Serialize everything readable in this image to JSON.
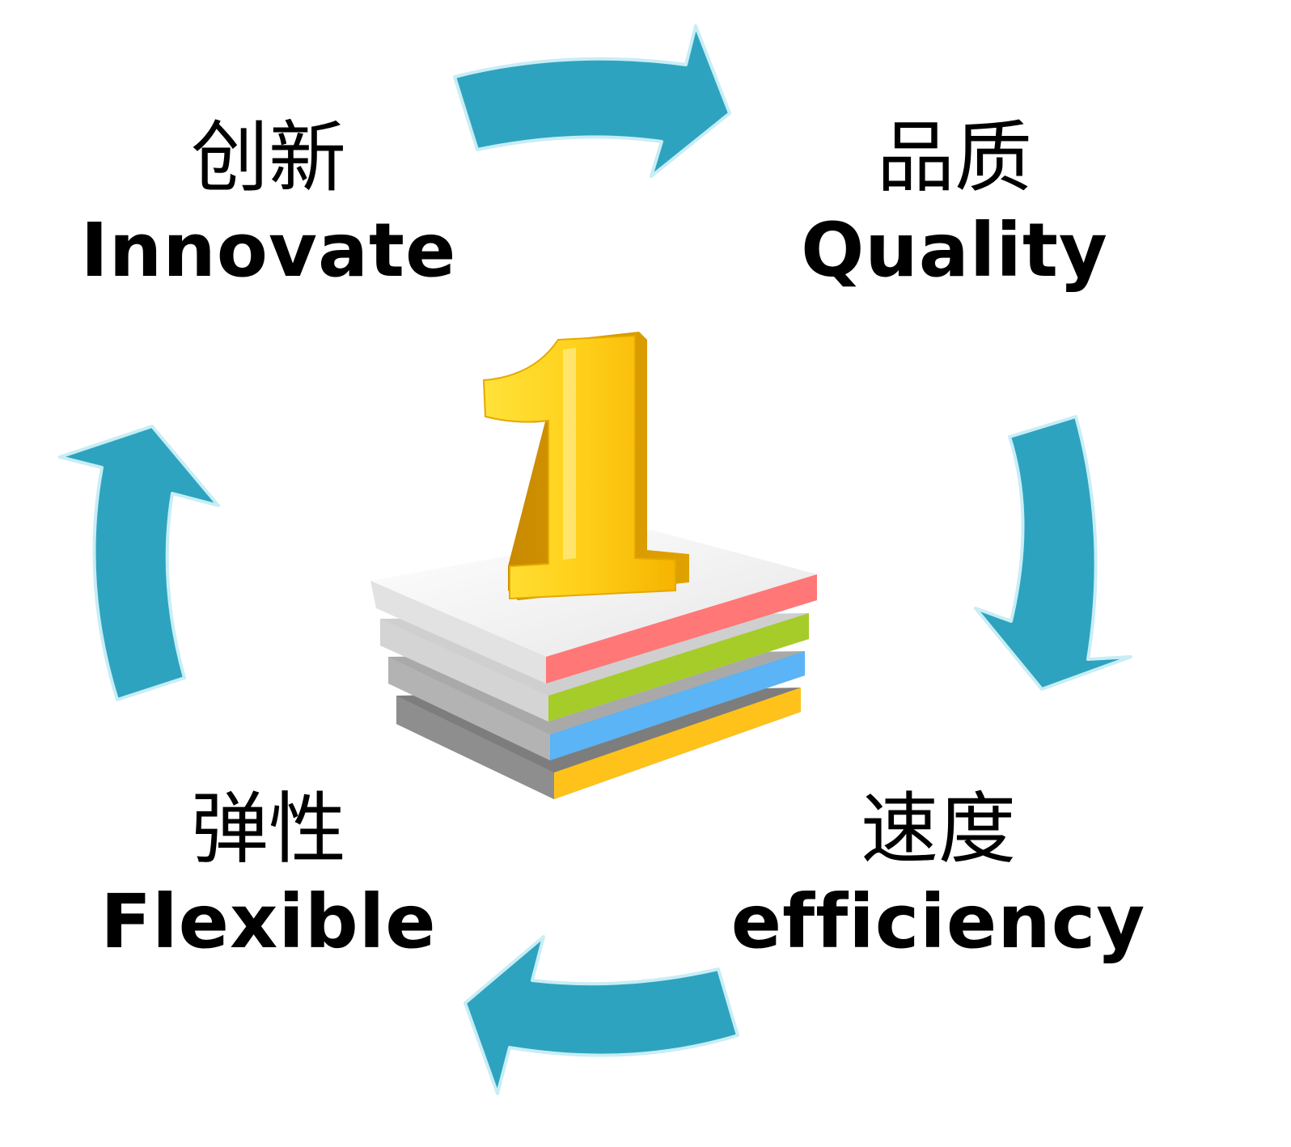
{
  "quadrants": {
    "innovate": {
      "zh": "创新",
      "en": "Innovate"
    },
    "quality": {
      "zh": "品质",
      "en": "Quality"
    },
    "efficiency": {
      "zh": "速度",
      "en": "efficiency"
    },
    "flexible": {
      "zh": "弹性",
      "en": "Flexible"
    }
  },
  "center_label": "1",
  "colors": {
    "arrow": "#2ea3bf",
    "arrow_outline": "#c8edf5",
    "layer_red": "#ff7777",
    "layer_green": "#a6cc2a",
    "layer_blue": "#5ab4f5",
    "layer_yellow": "#ffc21a",
    "numeral": "#ffd21a"
  }
}
